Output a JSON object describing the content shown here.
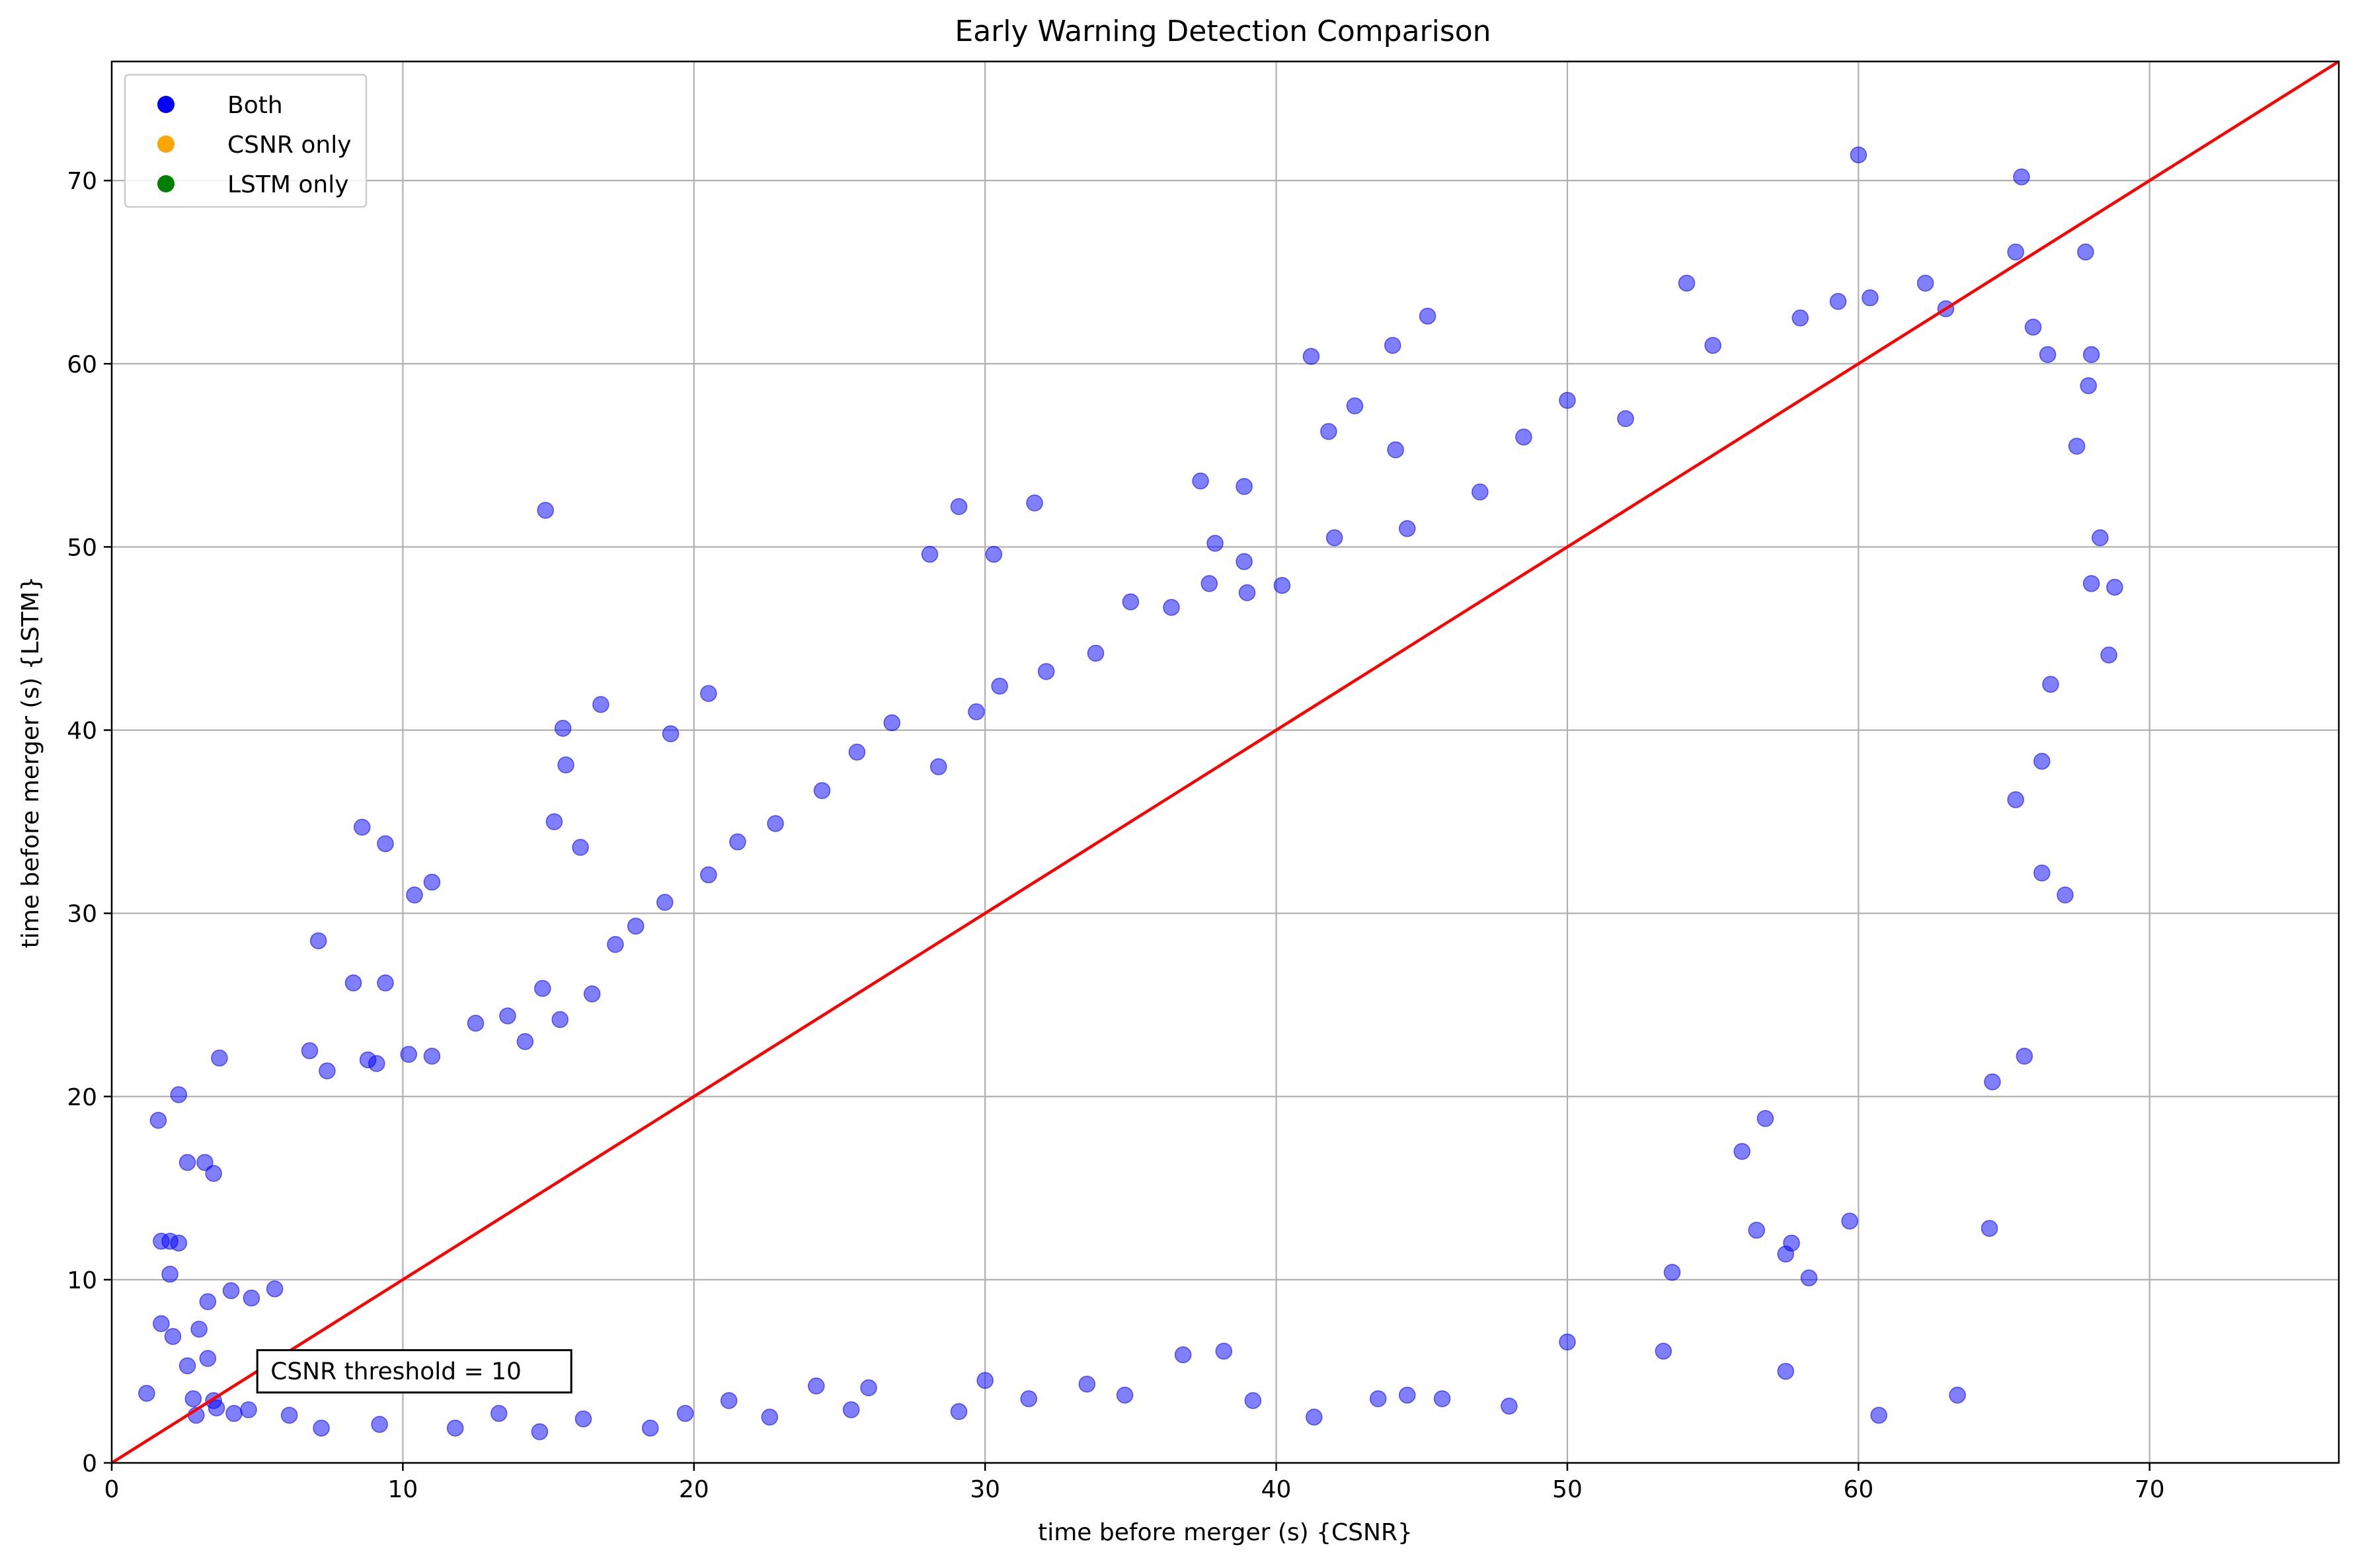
{
  "chart_data": {
    "type": "scatter",
    "title": "Early Warning Detection Comparison",
    "xlabel": "time before merger (s) {CSNR}",
    "ylabel": "time before merger (s) {LSTM}",
    "xlim": [
      0,
      76.5
    ],
    "ylim": [
      0,
      76.5
    ],
    "xticks": [
      0,
      10,
      20,
      30,
      40,
      50,
      60,
      70
    ],
    "yticks": [
      0,
      10,
      20,
      30,
      40,
      50,
      60,
      70
    ],
    "grid": true,
    "legend_position": "top-left",
    "legend": [
      {
        "label": "Both",
        "color": "#0000ff"
      },
      {
        "label": "CSNR only",
        "color": "#ffa500"
      },
      {
        "label": "LSTM only",
        "color": "#008000"
      }
    ],
    "reference_line": {
      "from": [
        0,
        0
      ],
      "to": [
        76.5,
        76.5
      ],
      "color": "#ff0000"
    },
    "annotation": {
      "text": "CSNR threshold = 10",
      "x": 5,
      "y": 5
    },
    "point_alpha": 0.5,
    "series": [
      {
        "name": "Both",
        "color": "#0000ff",
        "points": [
          [
            14.9,
            52.0
          ],
          [
            60.0,
            71.4
          ],
          [
            65.6,
            70.2
          ],
          [
            65.4,
            66.1
          ],
          [
            67.8,
            66.1
          ],
          [
            54.1,
            64.4
          ],
          [
            62.3,
            64.4
          ],
          [
            45.2,
            62.6
          ],
          [
            41.2,
            60.4
          ],
          [
            44.0,
            61.0
          ],
          [
            60.4,
            63.6
          ],
          [
            59.3,
            63.4
          ],
          [
            42.7,
            57.7
          ],
          [
            41.8,
            56.3
          ],
          [
            44.1,
            55.3
          ],
          [
            37.4,
            53.6
          ],
          [
            38.9,
            53.3
          ],
          [
            31.7,
            52.4
          ],
          [
            29.1,
            52.2
          ],
          [
            28.1,
            49.6
          ],
          [
            30.3,
            49.6
          ],
          [
            37.9,
            50.2
          ],
          [
            38.9,
            49.2
          ],
          [
            20.5,
            42.0
          ],
          [
            16.8,
            41.4
          ],
          [
            15.5,
            40.1
          ],
          [
            19.2,
            39.8
          ],
          [
            15.6,
            38.1
          ],
          [
            15.2,
            35.0
          ],
          [
            16.1,
            33.6
          ],
          [
            8.6,
            34.7
          ],
          [
            9.4,
            33.8
          ],
          [
            7.1,
            28.5
          ],
          [
            10.4,
            31.0
          ],
          [
            11.0,
            31.7
          ],
          [
            8.3,
            26.2
          ],
          [
            9.4,
            26.2
          ],
          [
            6.8,
            22.5
          ],
          [
            3.7,
            22.1
          ],
          [
            1.6,
            18.7
          ],
          [
            2.3,
            20.1
          ],
          [
            1.7,
            12.1
          ],
          [
            2.0,
            12.1
          ],
          [
            2.3,
            12.0
          ],
          [
            2.0,
            10.3
          ],
          [
            1.7,
            7.6
          ],
          [
            1.2,
            3.8
          ],
          [
            2.9,
            2.6
          ],
          [
            3.5,
            3.4
          ],
          [
            4.2,
            2.7
          ],
          [
            52.0,
            57.0
          ],
          [
            55.0,
            61.0
          ],
          [
            58.0,
            62.5
          ],
          [
            63.0,
            63.0
          ],
          [
            66.0,
            62.0
          ],
          [
            50.0,
            58.0
          ],
          [
            48.5,
            56.0
          ],
          [
            47.0,
            53.0
          ],
          [
            44.5,
            51.0
          ],
          [
            42.0,
            50.5
          ],
          [
            66.5,
            60.5
          ],
          [
            68.0,
            60.5
          ],
          [
            67.9,
            58.8
          ],
          [
            67.5,
            55.5
          ],
          [
            68.3,
            50.5
          ],
          [
            68.0,
            48.0
          ],
          [
            68.8,
            47.8
          ],
          [
            68.6,
            44.1
          ],
          [
            66.6,
            42.5
          ],
          [
            66.3,
            38.3
          ],
          [
            67.1,
            31.0
          ],
          [
            66.3,
            32.2
          ],
          [
            65.4,
            36.2
          ],
          [
            65.7,
            22.2
          ],
          [
            64.6,
            20.8
          ],
          [
            64.5,
            12.8
          ],
          [
            63.4,
            3.7
          ],
          [
            60.7,
            2.6
          ],
          [
            59.7,
            13.2
          ],
          [
            58.3,
            10.1
          ],
          [
            57.5,
            5.0
          ],
          [
            57.5,
            11.4
          ],
          [
            57.7,
            12.0
          ],
          [
            56.5,
            12.7
          ],
          [
            56.8,
            18.8
          ],
          [
            56.0,
            17.0
          ],
          [
            53.6,
            10.4
          ],
          [
            53.3,
            6.1
          ],
          [
            50.0,
            6.6
          ],
          [
            48.0,
            3.1
          ],
          [
            45.7,
            3.5
          ],
          [
            44.5,
            3.7
          ],
          [
            43.5,
            3.5
          ],
          [
            41.3,
            2.5
          ],
          [
            39.2,
            3.4
          ],
          [
            38.2,
            6.1
          ],
          [
            36.8,
            5.9
          ],
          [
            34.8,
            3.7
          ],
          [
            33.5,
            4.3
          ],
          [
            31.5,
            3.5
          ],
          [
            30.0,
            4.5
          ],
          [
            29.1,
            2.8
          ],
          [
            26.0,
            4.1
          ],
          [
            25.4,
            2.9
          ],
          [
            24.2,
            4.2
          ],
          [
            22.6,
            2.5
          ],
          [
            21.2,
            3.4
          ],
          [
            19.7,
            2.7
          ],
          [
            18.5,
            1.9
          ],
          [
            16.2,
            2.4
          ],
          [
            14.7,
            1.7
          ],
          [
            13.3,
            2.7
          ],
          [
            11.8,
            1.9
          ],
          [
            9.2,
            2.1
          ],
          [
            7.2,
            1.9
          ],
          [
            6.1,
            2.6
          ],
          [
            4.7,
            2.9
          ],
          [
            3.6,
            3.0
          ],
          [
            2.8,
            3.5
          ],
          [
            2.6,
            5.3
          ],
          [
            3.3,
            5.7
          ],
          [
            2.1,
            6.9
          ],
          [
            3.0,
            7.3
          ],
          [
            3.3,
            8.8
          ],
          [
            4.1,
            9.4
          ],
          [
            4.8,
            9.0
          ],
          [
            5.6,
            9.5
          ],
          [
            2.6,
            16.4
          ],
          [
            3.2,
            16.4
          ],
          [
            3.5,
            15.8
          ],
          [
            7.4,
            21.4
          ],
          [
            8.8,
            22.0
          ],
          [
            9.1,
            21.8
          ],
          [
            10.2,
            22.3
          ],
          [
            11.0,
            22.2
          ],
          [
            12.5,
            24.0
          ],
          [
            13.6,
            24.4
          ],
          [
            14.2,
            23.0
          ],
          [
            14.8,
            25.9
          ],
          [
            15.4,
            24.2
          ],
          [
            16.5,
            25.6
          ],
          [
            17.3,
            28.3
          ],
          [
            18.0,
            29.3
          ],
          [
            19.0,
            30.6
          ],
          [
            20.5,
            32.1
          ],
          [
            21.5,
            33.9
          ],
          [
            22.8,
            34.9
          ],
          [
            24.4,
            36.7
          ],
          [
            25.6,
            38.8
          ],
          [
            26.8,
            40.4
          ],
          [
            28.4,
            38.0
          ],
          [
            29.7,
            41.0
          ],
          [
            30.5,
            42.4
          ],
          [
            32.1,
            43.2
          ],
          [
            33.8,
            44.2
          ],
          [
            35.0,
            47.0
          ],
          [
            36.4,
            46.7
          ],
          [
            37.7,
            48.0
          ],
          [
            39.0,
            47.5
          ],
          [
            40.2,
            47.9
          ]
        ]
      }
    ]
  }
}
